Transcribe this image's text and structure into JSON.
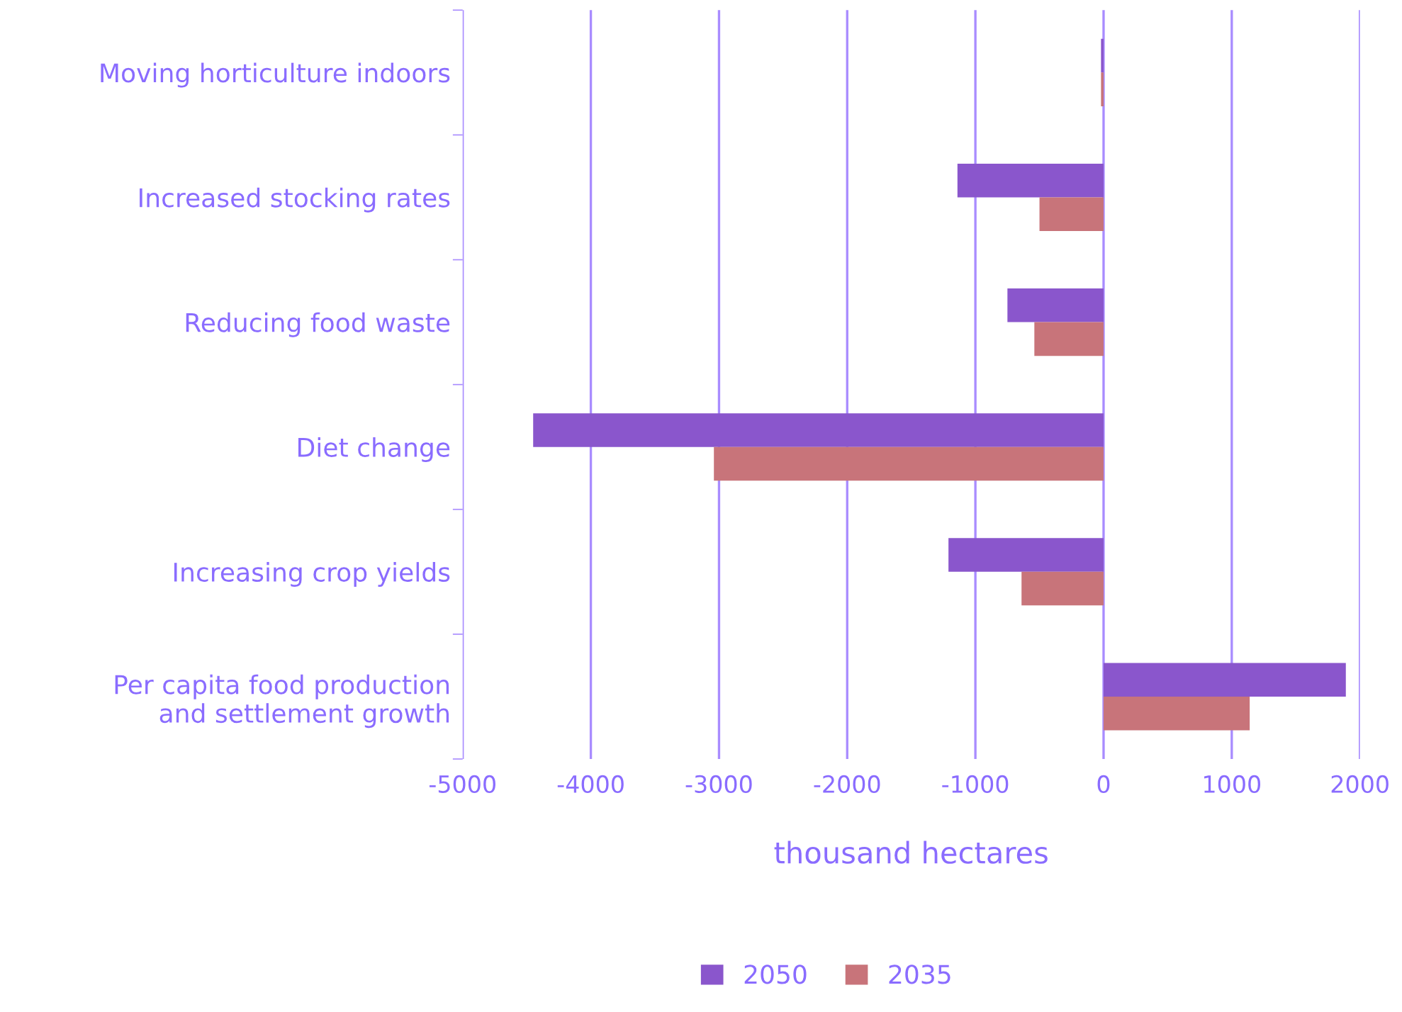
{
  "chart_data": {
    "type": "bar",
    "orientation": "horizontal",
    "xlabel": "thousand hectares",
    "categories": [
      "Moving horticulture indoors",
      "Increased stocking rates",
      "Reducing food waste",
      "Diet change",
      "Increasing crop yields",
      "Per capita food production\nand settlement growth"
    ],
    "series": [
      {
        "name": "2050",
        "color": "#8a56cc",
        "values": [
          -20,
          -1140,
          -750,
          -4450,
          -1210,
          1890
        ]
      },
      {
        "name": "2035",
        "color": "#c8747a",
        "values": [
          -20,
          -500,
          -540,
          -3040,
          -640,
          1140
        ]
      }
    ],
    "xlim": [
      -5000,
      2000
    ],
    "xticks": [
      -5000,
      -4000,
      -3000,
      -2000,
      -1000,
      0,
      1000,
      2000
    ],
    "grid": "x",
    "legend": "bottom"
  }
}
